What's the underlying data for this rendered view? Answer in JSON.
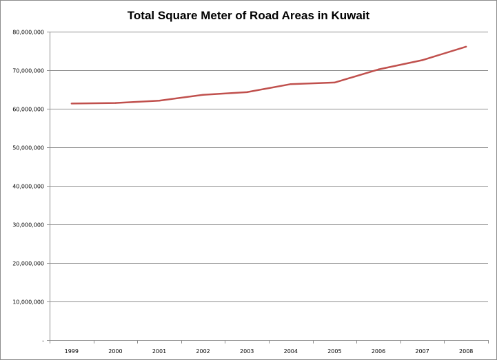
{
  "chart_data": {
    "type": "line",
    "title": "Total Square Meter of Road Areas in Kuwait",
    "xlabel": "",
    "ylabel": "",
    "categories": [
      "1999",
      "2000",
      "2001",
      "2002",
      "2003",
      "2004",
      "2005",
      "2006",
      "2007",
      "2008"
    ],
    "series": [
      {
        "values": [
          61350000,
          61500000,
          62100000,
          63600000,
          64300000,
          66400000,
          66800000,
          70200000,
          72600000,
          76100000
        ],
        "color": "#c0504d"
      }
    ],
    "ylim": [
      0,
      80000000
    ],
    "yticks": [
      0,
      10000000,
      20000000,
      30000000,
      40000000,
      50000000,
      60000000,
      70000000,
      80000000
    ],
    "ytick_labels": [
      "-",
      "10,000,000",
      "20,000,000",
      "30,000,000",
      "40,000,000",
      "50,000,000",
      "60,000,000",
      "70,000,000",
      "80,000,000"
    ],
    "grid": "horizontal",
    "legend": "none"
  }
}
